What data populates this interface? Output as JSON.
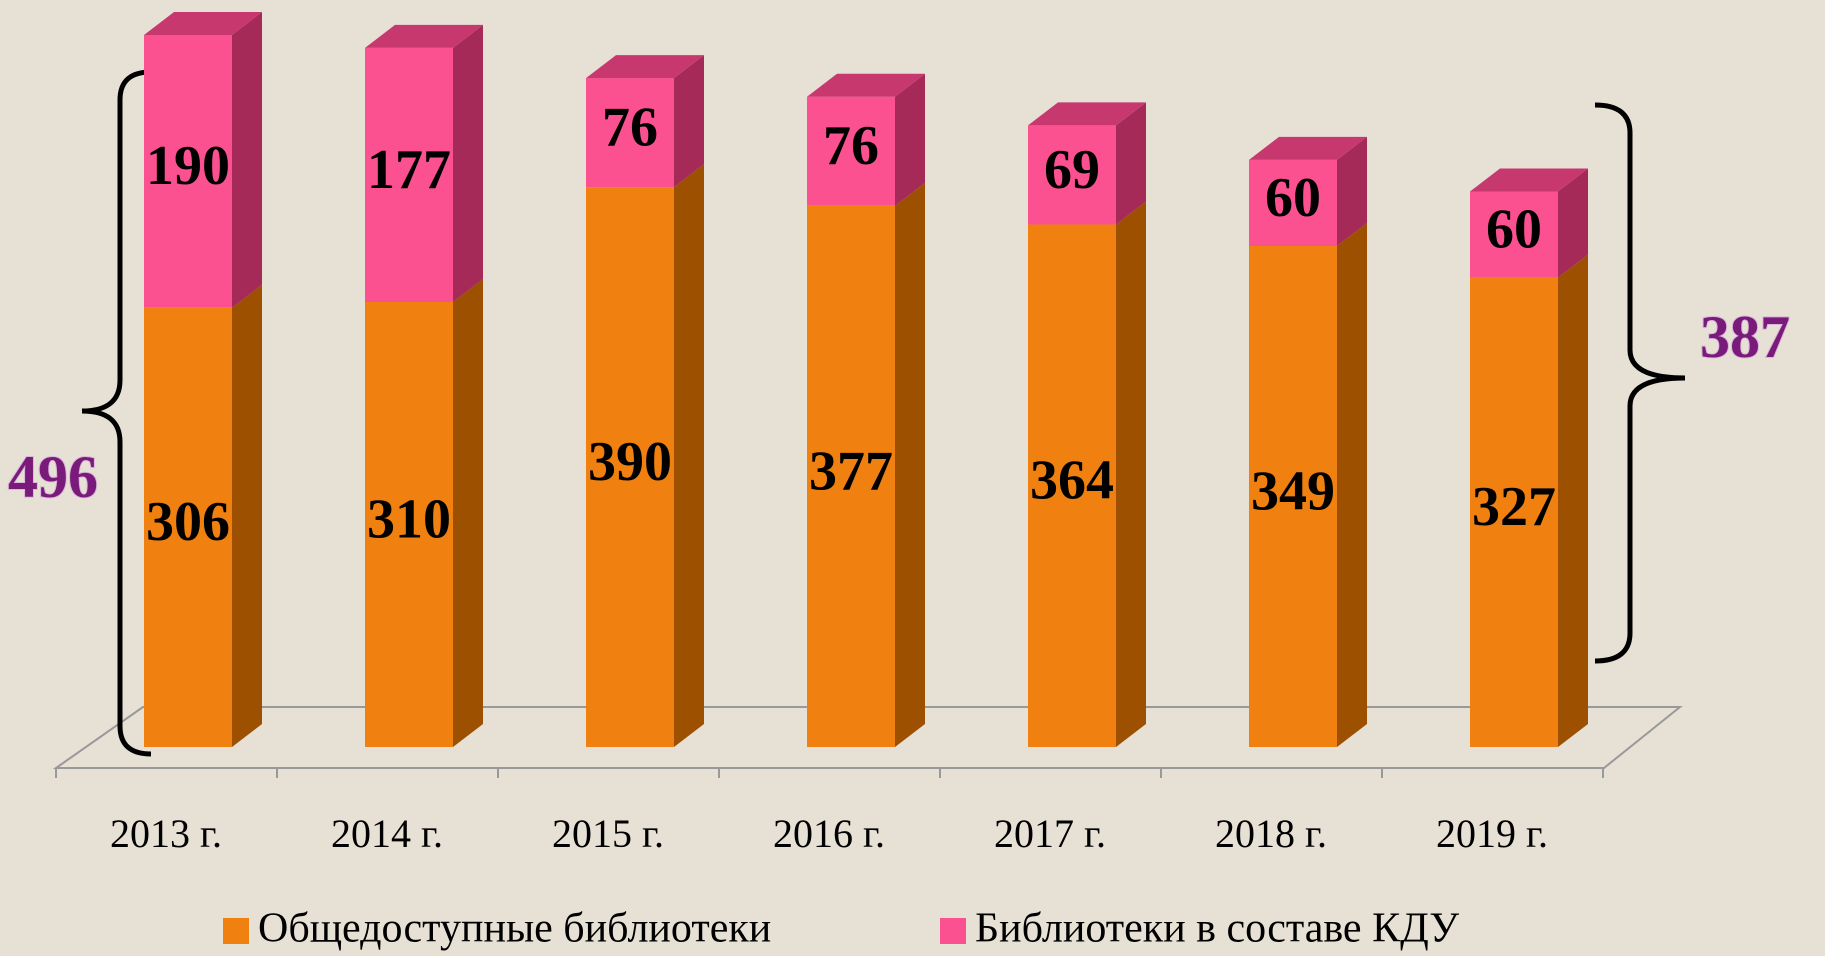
{
  "chart_data": {
    "type": "bar3d_stacked",
    "categories": [
      "2013  г.",
      "2014 г.",
      "2015 г.",
      "2016 г.",
      "2017 г.",
      "2018 г.",
      "2019 г."
    ],
    "series": [
      {
        "name": "Общедоступные библиотеки",
        "color": "#f0800f",
        "side_color": "#9c5000",
        "values": [
          306,
          310,
          390,
          377,
          364,
          349,
          327
        ]
      },
      {
        "name": "Библиотеки в составе КДУ",
        "color": "#fc5191",
        "side_color": "#a52a58",
        "top_color": "#c7396e",
        "values": [
          190,
          177,
          76,
          76,
          69,
          60,
          60
        ]
      }
    ],
    "annotations": [
      496,
      387
    ]
  }
}
